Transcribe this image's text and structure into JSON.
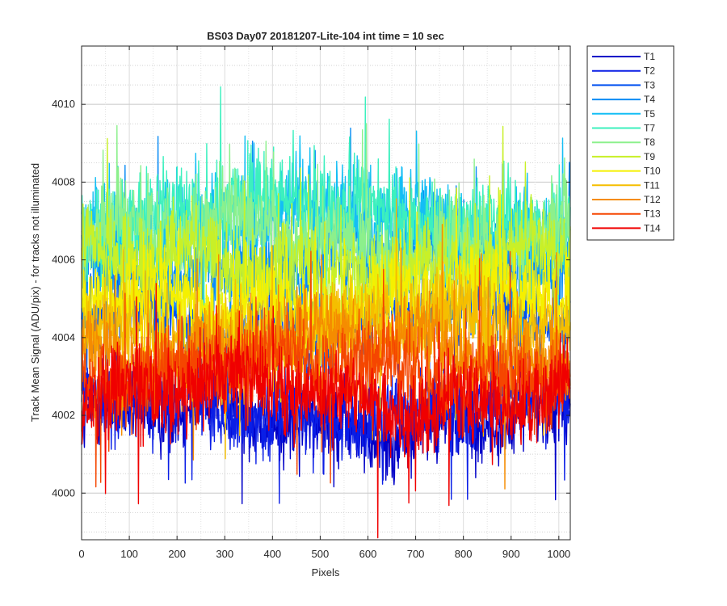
{
  "chart_data": {
    "type": "line",
    "title": "BS03 Day07 20181207-Lite-104 int time = 10 sec",
    "xlabel": "Pixels",
    "ylabel": "Track Mean Signal (ADU/pix) - for tracks not illuminated",
    "xlim": [
      0,
      1024
    ],
    "ylim": [
      3998.8,
      4011.5
    ],
    "xticks": [
      0,
      100,
      200,
      300,
      400,
      500,
      600,
      700,
      800,
      900,
      1000
    ],
    "xtick_labels": [
      "0",
      "100",
      "200",
      "300",
      "400",
      "500",
      "600",
      "700",
      "800",
      "900",
      "1000"
    ],
    "yticks": [
      4000,
      4002,
      4004,
      4006,
      4008,
      4010
    ],
    "ytick_labels": [
      "4000",
      "4002",
      "4004",
      "4006",
      "4008",
      "4010"
    ],
    "grid": "major and minor, dotted",
    "legend_position": "outside-top-right",
    "x_points": 1024,
    "series": [
      {
        "name": "T1",
        "color": "#0000c8",
        "mean": 4001.9,
        "spread": 0.9
      },
      {
        "name": "T2",
        "color": "#0a1ee6",
        "mean": 4002.2,
        "spread": 0.9
      },
      {
        "name": "T3",
        "color": "#0050f0",
        "mean": 4004.5,
        "spread": 1.0
      },
      {
        "name": "T4",
        "color": "#0a8cf5",
        "mean": 4006.0,
        "spread": 1.1
      },
      {
        "name": "T5",
        "color": "#14bef5",
        "mean": 4006.9,
        "spread": 1.1
      },
      {
        "name": "T7",
        "color": "#3cf0be",
        "mean": 4007.2,
        "spread": 1.1
      },
      {
        "name": "T8",
        "color": "#8cf08c",
        "mean": 4006.6,
        "spread": 1.0
      },
      {
        "name": "T9",
        "color": "#c8f028",
        "mean": 4005.9,
        "spread": 1.0
      },
      {
        "name": "T10",
        "color": "#f5f000",
        "mean": 4004.9,
        "spread": 1.0
      },
      {
        "name": "T11",
        "color": "#f5be00",
        "mean": 4004.2,
        "spread": 1.0
      },
      {
        "name": "T12",
        "color": "#f58c00",
        "mean": 4003.7,
        "spread": 1.0
      },
      {
        "name": "T13",
        "color": "#f54600",
        "mean": 4003.2,
        "spread": 1.0
      },
      {
        "name": "T14",
        "color": "#f00000",
        "mean": 4002.5,
        "spread": 1.0
      }
    ]
  }
}
